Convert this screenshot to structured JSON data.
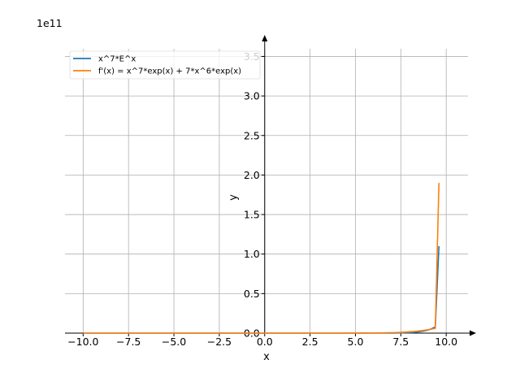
{
  "chart_data": {
    "type": "line",
    "title": "",
    "xlabel": "x",
    "ylabel": "y",
    "offset_label": "1e11",
    "xlim": [
      -11,
      11.2
    ],
    "ylim": [
      0,
      3.7
    ],
    "x_ticks": [
      -10,
      -7.5,
      -5,
      -2.5,
      0,
      2.5,
      5,
      7.5,
      10
    ],
    "x_tick_labels": [
      "−10.0",
      "−7.5",
      "−5.0",
      "−2.5",
      "0.0",
      "2.5",
      "5.0",
      "7.5",
      "10.0"
    ],
    "y_ticks": [
      0,
      0.5,
      1.0,
      1.5,
      2.0,
      2.5,
      3.0,
      3.5
    ],
    "y_tick_labels": [
      "0.0",
      "0.5",
      "1.0",
      "1.5",
      "2.0",
      "2.5",
      "3.0",
      "3.5"
    ],
    "grid": true,
    "legend_position": "top-left",
    "series": [
      {
        "name": "x^7*E^x",
        "color": "#1f77b4",
        "x": [
          -10,
          -9,
          -8,
          -7,
          -6,
          -5,
          -4,
          -3,
          -2,
          -1,
          0,
          1,
          2,
          3,
          4,
          5,
          5.5,
          6,
          6.5,
          7,
          7.25,
          7.5,
          7.75,
          8,
          8.25,
          8.5,
          8.75,
          9,
          9.2,
          9.4,
          9.6
        ],
        "y": [
          -4.5e-07,
          -5.8e-07,
          -7e-07,
          -7.5e-07,
          -6.9e-07,
          -5e-07,
          -3e-07,
          -1.1e-07,
          -1.7e-09,
          -3.7e-12,
          0,
          2.7e-11,
          9.5e-09,
          4.4e-07,
          8.9e-06,
          0.00011,
          0.0003,
          0.00011,
          0.0011,
          0.0009,
          0.0019,
          0.003,
          0.0054,
          0.0062,
          0.0102,
          0.0165,
          0.0257,
          0.0388,
          0.0562,
          0.08,
          1.1
        ]
      },
      {
        "name": "f'(x) = x^7*exp(x) + 7*x^6*exp(x)",
        "color": "#ff7f0e",
        "x": [
          -10,
          -9,
          -8,
          -7,
          -6,
          -5,
          -4,
          -3,
          -2,
          -1,
          0,
          1,
          2,
          3,
          4,
          5,
          5.5,
          6,
          6.5,
          7,
          7.25,
          7.5,
          7.75,
          8,
          8.25,
          8.5,
          8.75,
          9,
          9.2,
          9.4,
          9.6
        ],
        "y": [
          1.4e-07,
          1.7e-07,
          1.8e-07,
          0.0,
          -1.2e-07,
          -2e-07,
          -2.2e-07,
          -1.5e-07,
          -4.4e-09,
          2.2e-12,
          0,
          2.2e-10,
          4.2e-08,
          1.5e-06,
          2.5e-05,
          0.00027,
          0.00068,
          0.0015,
          0.003,
          0.0057,
          0.0076,
          0.01,
          0.0131,
          0.0169,
          0.0216,
          0.0274,
          0.0345,
          0.0431,
          0.0512,
          0.0606,
          1.9
        ]
      }
    ]
  }
}
